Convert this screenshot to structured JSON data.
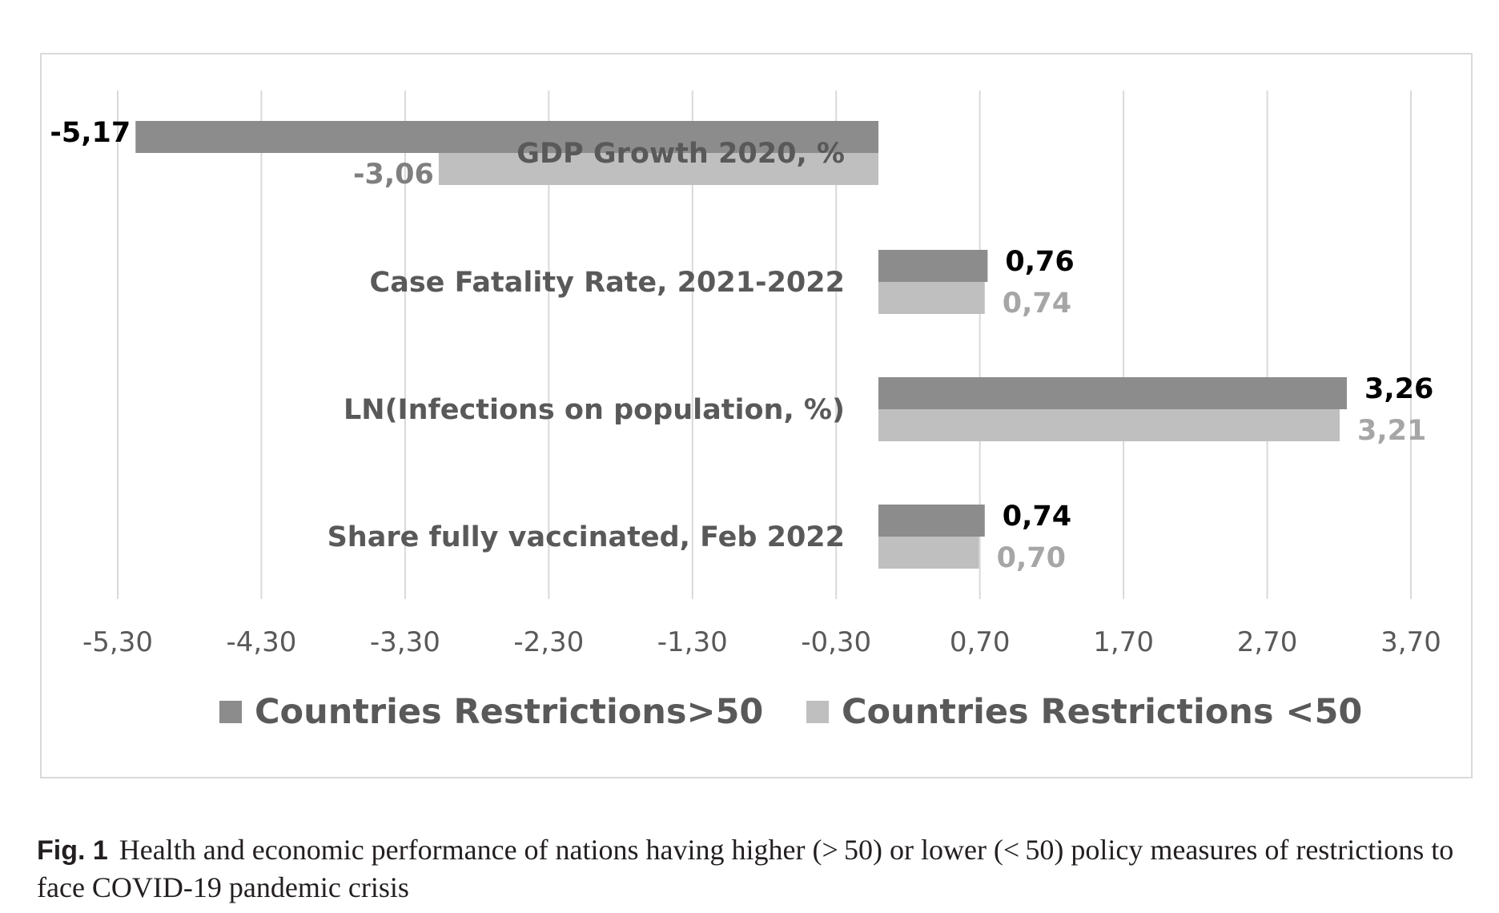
{
  "chart_data": {
    "type": "bar",
    "orientation": "horizontal",
    "categories": [
      "GDP Growth 2020, %",
      "Case Fatality Rate, 2021-2022",
      "LN(Infections on population, %)",
      "Share fully vaccinated, Feb 2022"
    ],
    "series": [
      {
        "name": "Countries Restrictions>50",
        "values": [
          -5.17,
          0.76,
          3.26,
          0.74
        ],
        "labels": [
          "-5,17",
          "0,76",
          "3,26",
          "0,74"
        ],
        "color": "#8c8c8c"
      },
      {
        "name": "Countries Restrictions <50",
        "values": [
          -3.06,
          0.74,
          3.21,
          0.7
        ],
        "labels": [
          "-3,06",
          "0,74",
          "3,21",
          "0,70"
        ],
        "color": "#bfbfbf"
      }
    ],
    "x_ticks": [
      -5.3,
      -4.3,
      -3.3,
      -2.3,
      -1.3,
      -0.3,
      0.7,
      1.7,
      2.7,
      3.7
    ],
    "x_tick_labels": [
      "-5,30",
      "-4,30",
      "-3,30",
      "-2,30",
      "-1,30",
      "-0,30",
      "0,70",
      "1,70",
      "2,70",
      "3,70"
    ],
    "xlim": [
      -5.3,
      3.7
    ],
    "grid": true,
    "legend_position": "bottom"
  },
  "caption": {
    "label": "Fig. 1",
    "text": "Health and economic performance of nations having higher (> 50) or lower (< 50) policy measures of restrictions to face COVID-19 pandemic crisis"
  }
}
